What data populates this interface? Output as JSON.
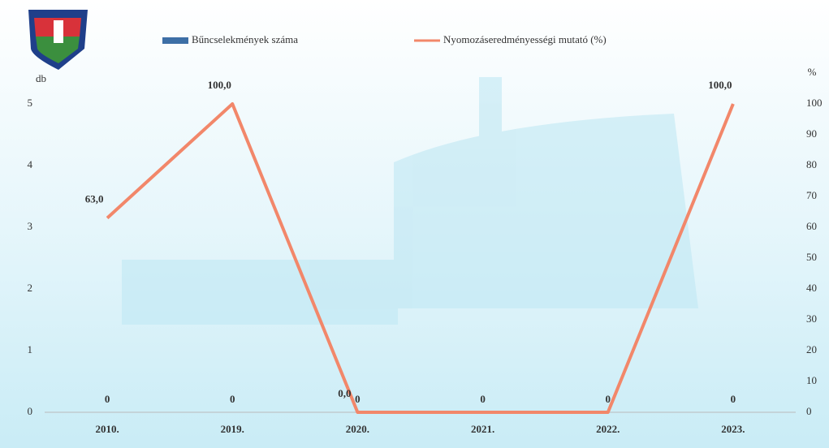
{
  "chart_data": {
    "type": "bar",
    "categories": [
      "2010.",
      "2019.",
      "2020.",
      "2021.",
      "2022.",
      "2023."
    ],
    "series": [
      {
        "name": "Bűncselekmények száma",
        "color": "#3d6fa6",
        "values": [
          0,
          0,
          0,
          0,
          0,
          0
        ]
      },
      {
        "name": "Nyomozáseredményességi mutató (%)",
        "color": "#f2876a",
        "type": "line",
        "axis": "y2",
        "values": [
          63,
          100,
          0,
          0,
          0,
          100
        ],
        "value_labels": [
          "63,0",
          "100,0",
          "0,0",
          null,
          null,
          "100,0"
        ]
      }
    ],
    "y_label": "db",
    "y2_label": "%",
    "ylim": [
      0,
      5
    ],
    "yticks": [
      0,
      1,
      2,
      3,
      4,
      5
    ],
    "y2lim": [
      0,
      100
    ],
    "y2ticks": [
      0,
      10,
      20,
      30,
      40,
      50,
      60,
      70,
      80,
      90,
      100
    ]
  }
}
